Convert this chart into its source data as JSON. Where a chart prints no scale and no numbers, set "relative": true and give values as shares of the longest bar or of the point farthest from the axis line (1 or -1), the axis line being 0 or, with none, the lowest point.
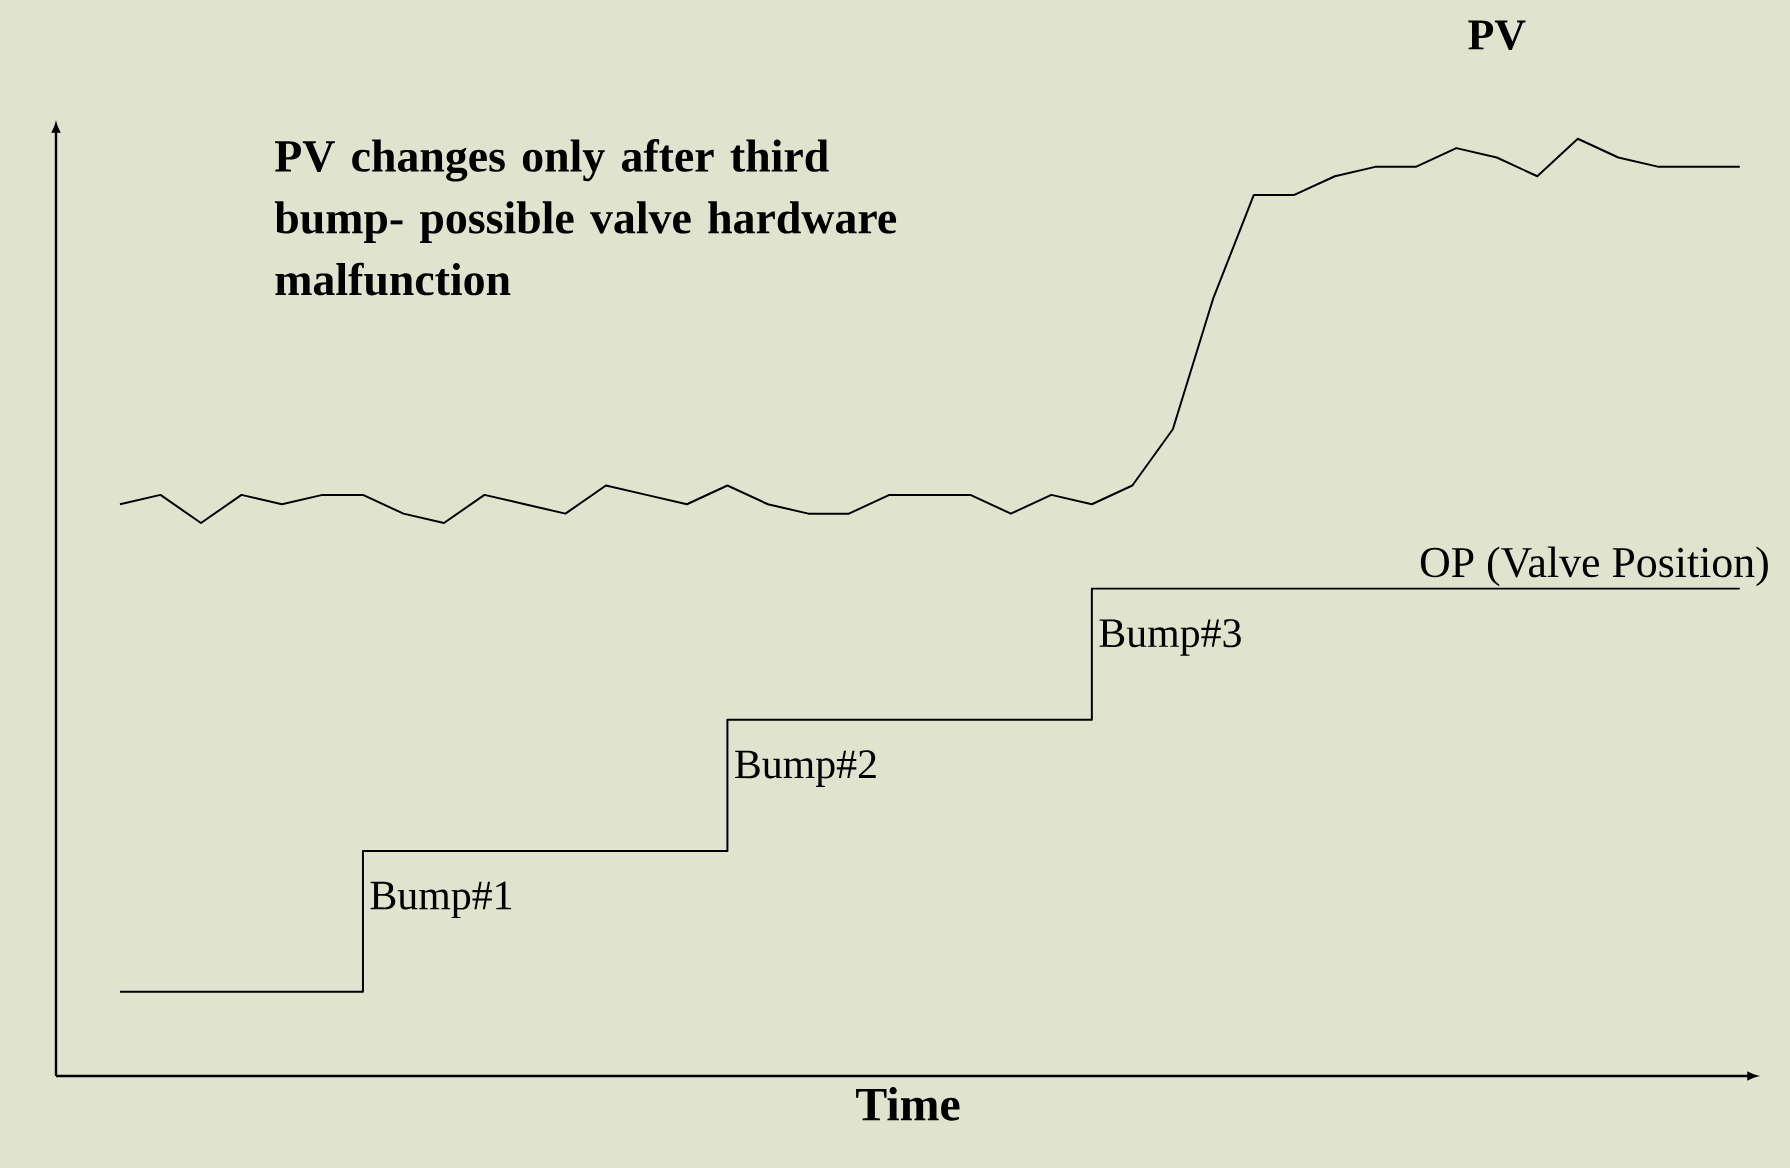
{
  "chart_data": {
    "type": "line",
    "relative": true,
    "xlabel": "Time",
    "categories": [
      null,
      null,
      null,
      null,
      null,
      null,
      null,
      null,
      null,
      null,
      null,
      null,
      null,
      null,
      null,
      null,
      null,
      null,
      null,
      null,
      null,
      null,
      null,
      null,
      null,
      null,
      null,
      null,
      null,
      null,
      null,
      null,
      null,
      null,
      null,
      null,
      null,
      null,
      null,
      null,
      null
    ],
    "series": [
      {
        "name": "PV",
        "type": "line",
        "color": "#000000",
        "values": [
          0.61,
          0.62,
          0.59,
          0.62,
          0.61,
          0.62,
          0.62,
          0.6,
          0.59,
          0.62,
          0.61,
          0.6,
          0.63,
          0.62,
          0.61,
          0.63,
          0.61,
          0.6,
          0.6,
          0.62,
          0.62,
          0.62,
          0.6,
          0.62,
          0.61,
          0.63,
          0.69,
          0.83,
          0.94,
          0.94,
          0.96,
          0.97,
          0.97,
          0.99,
          0.98,
          0.96,
          1.0,
          0.98,
          0.97,
          0.97,
          0.97
        ]
      },
      {
        "name": "OP (Valve Position)",
        "type": "step",
        "color": "#000000",
        "values": [
          0.09,
          0.09,
          0.09,
          0.09,
          0.09,
          0.09,
          0.24,
          0.24,
          0.24,
          0.24,
          0.24,
          0.24,
          0.24,
          0.24,
          0.24,
          0.38,
          0.38,
          0.38,
          0.38,
          0.38,
          0.38,
          0.38,
          0.38,
          0.38,
          0.52,
          0.52,
          0.52,
          0.52,
          0.52,
          0.52,
          0.52,
          0.52,
          0.52,
          0.52,
          0.52,
          0.52,
          0.52,
          0.52,
          0.52,
          0.52,
          0.52
        ]
      }
    ],
    "annotations": [
      "PV changes only after third bump- possible valve hardware malfunction",
      "Bump#1",
      "Bump#2",
      "Bump#3"
    ]
  }
}
